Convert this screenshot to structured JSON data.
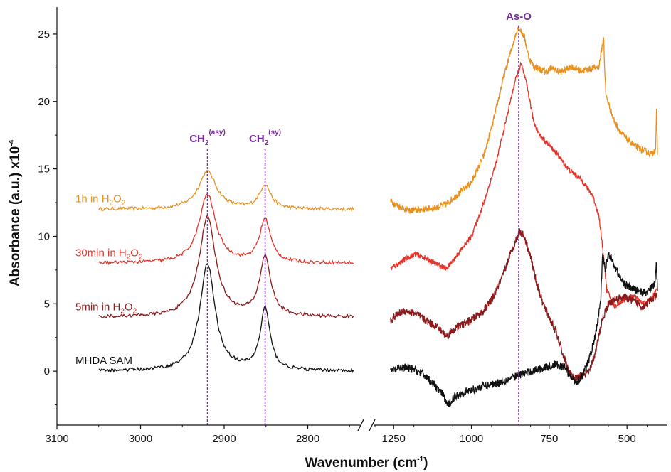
{
  "chart_data": {
    "type": "line",
    "xlabel_main": "Wavenumber (cm",
    "xlabel_sup": "-1",
    "xlabel_tail": ")",
    "ylabel_main": "Absorbance (a.u.) x10",
    "ylabel_sup": "-4",
    "ylim": [
      -4,
      27
    ],
    "yticks": [
      "0",
      "5",
      "10",
      "15",
      "20",
      "25"
    ],
    "x_segments": [
      {
        "range": [
          3100,
          2740
        ],
        "ticks": [
          "3100",
          "3000",
          "2900",
          "2800"
        ]
      },
      {
        "range": [
          1310,
          370
        ],
        "ticks": [
          "1250",
          "1000",
          "750",
          "500"
        ]
      }
    ],
    "axis_break": "x",
    "grid": false,
    "peak_markers": [
      {
        "x": 2920,
        "segment": 0,
        "label": "CH",
        "sub": "2",
        "sup": "(asy)",
        "color": "#7a2e9c"
      },
      {
        "x": 2851,
        "segment": 0,
        "label": "CH",
        "sub": "2",
        "sup": "(sy)",
        "color": "#7a2e9c"
      },
      {
        "x": 848,
        "segment": 1,
        "label": "As-O",
        "sub": "",
        "sup": "",
        "color": "#7a2e9c"
      }
    ],
    "series": [
      {
        "label_main": "1h in H",
        "label_sub1": "2",
        "label_mid": "O",
        "label_sub2": "2",
        "color": "#e8911f",
        "baseline": 12.0,
        "peaks": [
          {
            "x": 2920,
            "h": 2.8,
            "w": 13
          },
          {
            "x": 2851,
            "h": 1.8,
            "w": 8
          }
        ],
        "region2": [
          [
            1260,
            12.6
          ],
          [
            1230,
            12.2
          ],
          [
            1200,
            11.9
          ],
          [
            1160,
            12.0
          ],
          [
            1120,
            12.1
          ],
          [
            1080,
            12.4
          ],
          [
            1040,
            13.2
          ],
          [
            1000,
            14.0
          ],
          [
            960,
            16.0
          ],
          [
            930,
            18.5
          ],
          [
            900,
            21.5
          ],
          [
            870,
            24.0
          ],
          [
            850,
            25.6
          ],
          [
            830,
            24.8
          ],
          [
            815,
            23.2
          ],
          [
            800,
            22.6
          ],
          [
            780,
            22.4
          ],
          [
            760,
            22.2
          ],
          [
            740,
            22.5
          ],
          [
            720,
            22.2
          ],
          [
            700,
            22.3
          ],
          [
            680,
            22.6
          ],
          [
            650,
            22.3
          ],
          [
            620,
            22.4
          ],
          [
            590,
            22.6
          ],
          [
            575,
            24.8
          ],
          [
            572,
            22.6
          ],
          [
            568,
            20.5
          ],
          [
            555,
            19.5
          ],
          [
            540,
            18.5
          ],
          [
            520,
            17.7
          ],
          [
            500,
            17.2
          ],
          [
            480,
            16.8
          ],
          [
            460,
            16.5
          ],
          [
            440,
            16.3
          ],
          [
            420,
            16.1
          ],
          [
            408,
            16.5
          ],
          [
            405,
            19.3
          ],
          [
            402,
            16.2
          ]
        ],
        "noise": 0.25
      },
      {
        "label_main": "30min in H",
        "label_sub1": "2",
        "label_mid": "O",
        "label_sub2": "2",
        "color": "#e5332a",
        "baseline": 8.0,
        "peaks": [
          {
            "x": 2920,
            "h": 5.1,
            "w": 12
          },
          {
            "x": 2851,
            "h": 3.2,
            "w": 8
          }
        ],
        "region2": [
          [
            1260,
            7.6
          ],
          [
            1220,
            8.2
          ],
          [
            1180,
            8.7
          ],
          [
            1150,
            8.4
          ],
          [
            1100,
            7.8
          ],
          [
            1080,
            7.6
          ],
          [
            1050,
            8.5
          ],
          [
            1000,
            10.0
          ],
          [
            960,
            12.5
          ],
          [
            920,
            15.5
          ],
          [
            890,
            18.5
          ],
          [
            860,
            21.5
          ],
          [
            840,
            22.8
          ],
          [
            820,
            21.0
          ],
          [
            800,
            18.5
          ],
          [
            780,
            17.5
          ],
          [
            760,
            17.0
          ],
          [
            740,
            16.5
          ],
          [
            720,
            16.0
          ],
          [
            700,
            15.3
          ],
          [
            680,
            14.8
          ],
          [
            660,
            14.5
          ],
          [
            640,
            14.0
          ],
          [
            610,
            13.0
          ],
          [
            590,
            11.5
          ],
          [
            575,
            8.5
          ],
          [
            565,
            6.0
          ],
          [
            540,
            4.8
          ],
          [
            510,
            5.3
          ],
          [
            480,
            5.6
          ],
          [
            450,
            5.0
          ],
          [
            420,
            5.4
          ],
          [
            405,
            6.0
          ]
        ],
        "noise": 0.2
      },
      {
        "label_main": "5min in H",
        "label_sub1": "2",
        "label_mid": "O",
        "label_sub2": "2",
        "color": "#8b1a1a",
        "baseline": 4.0,
        "peaks": [
          {
            "x": 2920,
            "h": 7.4,
            "w": 12
          },
          {
            "x": 2851,
            "h": 4.4,
            "w": 8
          }
        ],
        "region2": [
          [
            1260,
            3.8
          ],
          [
            1220,
            4.5
          ],
          [
            1180,
            4.3
          ],
          [
            1150,
            3.8
          ],
          [
            1110,
            3.3
          ],
          [
            1080,
            2.6
          ],
          [
            1050,
            3.2
          ],
          [
            1000,
            3.8
          ],
          [
            960,
            4.5
          ],
          [
            930,
            5.5
          ],
          [
            900,
            7.0
          ],
          [
            870,
            9.0
          ],
          [
            845,
            10.4
          ],
          [
            830,
            10.0
          ],
          [
            810,
            8.5
          ],
          [
            790,
            6.5
          ],
          [
            770,
            5.0
          ],
          [
            750,
            4.0
          ],
          [
            730,
            3.0
          ],
          [
            710,
            1.5
          ],
          [
            690,
            0.2
          ],
          [
            670,
            -0.6
          ],
          [
            650,
            -0.4
          ],
          [
            620,
            0.0
          ],
          [
            600,
            1.5
          ],
          [
            580,
            3.8
          ],
          [
            560,
            5.0
          ],
          [
            540,
            5.3
          ],
          [
            510,
            5.5
          ],
          [
            480,
            5.2
          ],
          [
            450,
            4.8
          ],
          [
            420,
            5.3
          ],
          [
            405,
            5.6
          ]
        ],
        "noise": 0.3
      },
      {
        "label_main": "MHDA SAM",
        "label_sub1": "",
        "label_mid": "",
        "label_sub2": "",
        "color": "#111111",
        "baseline": 0.0,
        "peaks": [
          {
            "x": 2920,
            "h": 7.9,
            "w": 11
          },
          {
            "x": 2851,
            "h": 4.6,
            "w": 7
          }
        ],
        "region2": [
          [
            1260,
            0.0
          ],
          [
            1220,
            0.3
          ],
          [
            1180,
            0.1
          ],
          [
            1150,
            -0.3
          ],
          [
            1120,
            -1.0
          ],
          [
            1090,
            -1.8
          ],
          [
            1075,
            -2.6
          ],
          [
            1060,
            -2.0
          ],
          [
            1030,
            -1.6
          ],
          [
            1000,
            -1.4
          ],
          [
            960,
            -1.1
          ],
          [
            920,
            -0.9
          ],
          [
            880,
            -0.6
          ],
          [
            850,
            -0.3
          ],
          [
            820,
            -0.1
          ],
          [
            790,
            0.1
          ],
          [
            760,
            0.3
          ],
          [
            730,
            0.5
          ],
          [
            700,
            0.3
          ],
          [
            680,
            -0.5
          ],
          [
            660,
            -0.8
          ],
          [
            640,
            -0.2
          ],
          [
            620,
            1.0
          ],
          [
            600,
            2.8
          ],
          [
            585,
            5.0
          ],
          [
            578,
            8.8
          ],
          [
            570,
            7.5
          ],
          [
            560,
            8.8
          ],
          [
            540,
            7.8
          ],
          [
            520,
            6.8
          ],
          [
            500,
            6.3
          ],
          [
            470,
            6.0
          ],
          [
            440,
            5.8
          ],
          [
            420,
            6.2
          ],
          [
            410,
            6.5
          ],
          [
            406,
            8.0
          ],
          [
            402,
            6.2
          ]
        ],
        "noise": 0.3
      }
    ]
  }
}
